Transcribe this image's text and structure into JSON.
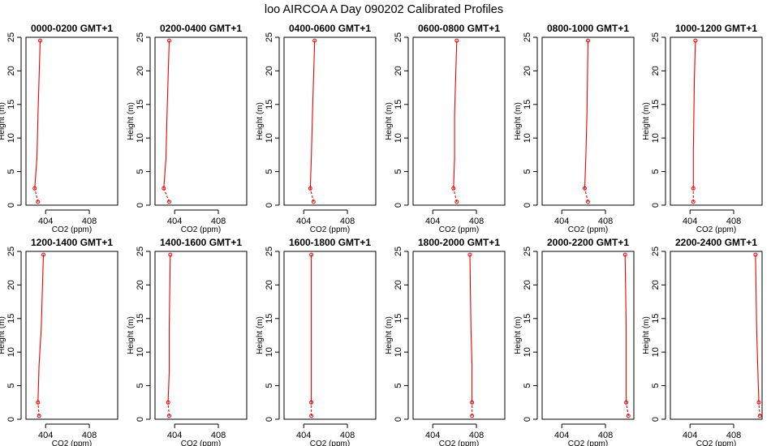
{
  "figure": {
    "title": "loo AIRCOA A  Day 090202  Calibrated Profiles"
  },
  "style": {
    "series_color": "#ee0000",
    "axis_color": "#000000",
    "background": "#ffffff"
  },
  "chart_data": [
    {
      "type": "line",
      "title": "0000-0200 GMT+1",
      "xlabel": "CO2 (ppm)",
      "ylabel": "Height (m)",
      "xlim": [
        402.2,
        410.6
      ],
      "ylim": [
        0,
        25
      ],
      "xticks": [
        404,
        408
      ],
      "yticks": [
        0,
        5,
        10,
        15,
        20,
        25
      ],
      "series": [
        {
          "points": [
            [
              403.3,
              0.5
            ],
            [
              403.0,
              2.5
            ],
            [
              403.2,
              7
            ],
            [
              403.3,
              13.5
            ],
            [
              403.5,
              24.5
            ]
          ],
          "markers_at": [
            0,
            1,
            4
          ]
        }
      ]
    },
    {
      "type": "line",
      "title": "0200-0400 GMT+1",
      "xlabel": "CO2 (ppm)",
      "ylabel": "Height (m)",
      "xlim": [
        402.2,
        410.6
      ],
      "ylim": [
        0,
        25
      ],
      "xticks": [
        404,
        408
      ],
      "yticks": [
        0,
        5,
        10,
        15,
        20,
        25
      ],
      "series": [
        {
          "points": [
            [
              403.5,
              0.5
            ],
            [
              403.0,
              2.5
            ],
            [
              403.2,
              7
            ],
            [
              403.3,
              13.5
            ],
            [
              403.5,
              24.5
            ]
          ],
          "markers_at": [
            0,
            1,
            4
          ]
        }
      ]
    },
    {
      "type": "line",
      "title": "0400-0600 GMT+1",
      "xlabel": "CO2 (ppm)",
      "ylabel": "Height (m)",
      "xlim": [
        402.2,
        410.6
      ],
      "ylim": [
        0,
        25
      ],
      "xticks": [
        404,
        408
      ],
      "yticks": [
        0,
        5,
        10,
        15,
        20,
        25
      ],
      "series": [
        {
          "points": [
            [
              404.9,
              0.5
            ],
            [
              404.6,
              2.5
            ],
            [
              404.7,
              7
            ],
            [
              404.8,
              13.5
            ],
            [
              405.0,
              24.5
            ]
          ],
          "markers_at": [
            0,
            1,
            4
          ]
        }
      ]
    },
    {
      "type": "line",
      "title": "0600-0800 GMT+1",
      "xlabel": "CO2 (ppm)",
      "ylabel": "Height (m)",
      "xlim": [
        402.2,
        410.6
      ],
      "ylim": [
        0,
        25
      ],
      "xticks": [
        404,
        408
      ],
      "yticks": [
        0,
        5,
        10,
        15,
        20,
        25
      ],
      "series": [
        {
          "points": [
            [
              406.2,
              0.5
            ],
            [
              405.9,
              2.5
            ],
            [
              406.0,
              7
            ],
            [
              406.0,
              13.5
            ],
            [
              406.2,
              24.5
            ]
          ],
          "markers_at": [
            0,
            1,
            4
          ]
        }
      ]
    },
    {
      "type": "line",
      "title": "0800-1000 GMT+1",
      "xlabel": "CO2 (ppm)",
      "ylabel": "Height (m)",
      "xlim": [
        402.2,
        410.6
      ],
      "ylim": [
        0,
        25
      ],
      "xticks": [
        404,
        408
      ],
      "yticks": [
        0,
        5,
        10,
        15,
        20,
        25
      ],
      "series": [
        {
          "points": [
            [
              406.4,
              0.5
            ],
            [
              406.1,
              2.5
            ],
            [
              406.2,
              7
            ],
            [
              406.3,
              13.5
            ],
            [
              406.4,
              24.5
            ]
          ],
          "markers_at": [
            0,
            1,
            4
          ]
        }
      ]
    },
    {
      "type": "line",
      "title": "1000-1200 GMT+1",
      "xlabel": "CO2 (ppm)",
      "ylabel": "Height (m)",
      "xlim": [
        402.2,
        410.6
      ],
      "ylim": [
        0,
        25
      ],
      "xticks": [
        404,
        408
      ],
      "yticks": [
        0,
        5,
        10,
        15,
        20,
        25
      ],
      "series": [
        {
          "points": [
            [
              404.3,
              0.5
            ],
            [
              404.3,
              2.5
            ],
            [
              404.3,
              8
            ],
            [
              404.4,
              19
            ],
            [
              404.5,
              24.5
            ]
          ],
          "markers_at": [
            0,
            1,
            4
          ]
        }
      ]
    },
    {
      "type": "line",
      "title": "1200-1400 GMT+1",
      "xlabel": "CO2 (ppm)",
      "ylabel": "Height (m)",
      "xlim": [
        402.2,
        410.6
      ],
      "ylim": [
        0,
        25
      ],
      "xticks": [
        404,
        408
      ],
      "yticks": [
        0,
        5,
        10,
        15,
        20,
        25
      ],
      "series": [
        {
          "points": [
            [
              403.4,
              0.5
            ],
            [
              403.3,
              2.5
            ],
            [
              403.4,
              8
            ],
            [
              403.6,
              13.5
            ],
            [
              403.8,
              24.5
            ]
          ],
          "markers_at": [
            0,
            1,
            4
          ]
        }
      ]
    },
    {
      "type": "line",
      "title": "1400-1600 GMT+1",
      "xlabel": "CO2 (ppm)",
      "ylabel": "Height (m)",
      "xlim": [
        402.2,
        410.6
      ],
      "ylim": [
        0,
        25
      ],
      "xticks": [
        404,
        408
      ],
      "yticks": [
        0,
        5,
        10,
        15,
        20,
        25
      ],
      "series": [
        {
          "points": [
            [
              403.5,
              0.5
            ],
            [
              403.4,
              2.5
            ],
            [
              403.5,
              7
            ],
            [
              403.5,
              13.5
            ],
            [
              403.6,
              24.5
            ]
          ],
          "markers_at": [
            0,
            1,
            4
          ]
        }
      ]
    },
    {
      "type": "line",
      "title": "1600-1800 GMT+1",
      "xlabel": "CO2 (ppm)",
      "ylabel": "Height (m)",
      "xlim": [
        402.2,
        410.6
      ],
      "ylim": [
        0,
        25
      ],
      "xticks": [
        404,
        408
      ],
      "yticks": [
        0,
        5,
        10,
        15,
        20,
        25
      ],
      "series": [
        {
          "points": [
            [
              404.7,
              0.5
            ],
            [
              404.7,
              2.5
            ],
            [
              404.7,
              8
            ],
            [
              404.7,
              13.5
            ],
            [
              404.7,
              24.5
            ]
          ],
          "markers_at": [
            0,
            1,
            4
          ]
        }
      ]
    },
    {
      "type": "line",
      "title": "1800-2000 GMT+1",
      "xlabel": "CO2 (ppm)",
      "ylabel": "Height (m)",
      "xlim": [
        402.2,
        410.6
      ],
      "ylim": [
        0,
        25
      ],
      "xticks": [
        404,
        408
      ],
      "yticks": [
        0,
        5,
        10,
        15,
        20,
        25
      ],
      "series": [
        {
          "points": [
            [
              407.6,
              0.5
            ],
            [
              407.6,
              2.5
            ],
            [
              407.6,
              8
            ],
            [
              407.5,
              13.5
            ],
            [
              407.4,
              24.5
            ]
          ],
          "markers_at": [
            0,
            1,
            4
          ]
        }
      ]
    },
    {
      "type": "line",
      "title": "2000-2200 GMT+1",
      "xlabel": "CO2 (ppm)",
      "ylabel": "Height (m)",
      "xlim": [
        402.2,
        410.6
      ],
      "ylim": [
        0,
        25
      ],
      "xticks": [
        404,
        408
      ],
      "yticks": [
        0,
        5,
        10,
        15,
        20,
        25
      ],
      "series": [
        {
          "points": [
            [
              410.1,
              0.5
            ],
            [
              409.9,
              2.5
            ],
            [
              409.9,
              8
            ],
            [
              409.9,
              13.5
            ],
            [
              409.8,
              24.5
            ]
          ],
          "markers_at": [
            0,
            1,
            4
          ]
        }
      ]
    },
    {
      "type": "line",
      "title": "2200-2400 GMT+1",
      "xlabel": "CO2 (ppm)",
      "ylabel": "Height (m)",
      "xlim": [
        402.2,
        410.6
      ],
      "ylim": [
        0,
        25
      ],
      "xticks": [
        404,
        408
      ],
      "yticks": [
        0,
        5,
        10,
        15,
        20,
        25
      ],
      "series": [
        {
          "points": [
            [
              410.4,
              0.5
            ],
            [
              410.3,
              2.5
            ],
            [
              410.2,
              8
            ],
            [
              410.1,
              13.5
            ],
            [
              410.0,
              24.5
            ]
          ],
          "markers_at": [
            0,
            1,
            4
          ]
        }
      ]
    }
  ]
}
